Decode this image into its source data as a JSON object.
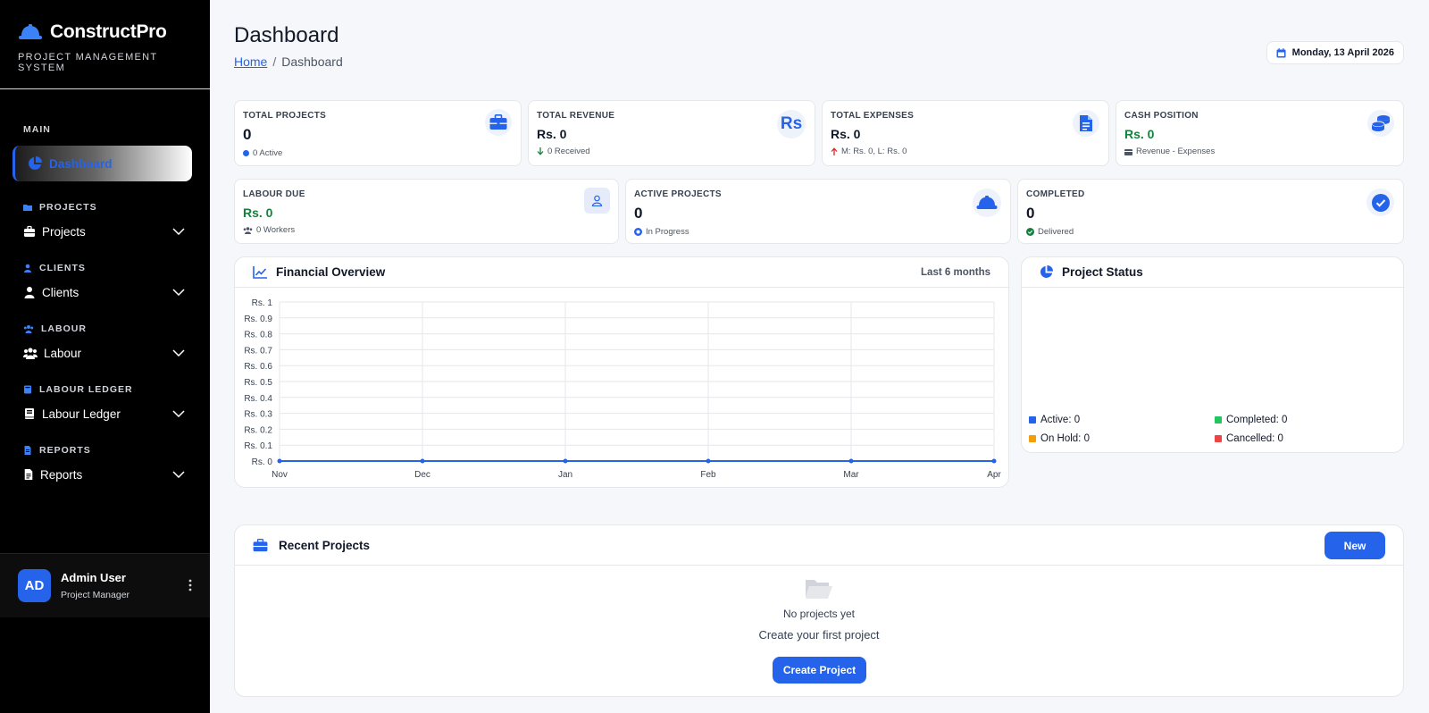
{
  "sidebar": {
    "brand_title": "ConstructPro",
    "brand_subtitle": "PROJECT MANAGEMENT SYSTEM",
    "brand_icon": "hard-hat-icon",
    "sections": [
      {
        "label": "MAIN"
      },
      {
        "label": "PROJECTS",
        "item": "Projects",
        "icon": "briefcase-icon"
      },
      {
        "label": "CLIENTS",
        "item": "Clients",
        "icon": "user-icon"
      },
      {
        "label": "LABOUR",
        "item": "Labour",
        "icon": "users-icon"
      },
      {
        "label": "LABOUR LEDGER",
        "item": "Labour Ledger",
        "icon": "book-icon"
      },
      {
        "label": "REPORTS",
        "item": "Reports",
        "icon": "file-icon"
      }
    ],
    "active_item": "Dashboard",
    "user": {
      "initials": "AD",
      "name": "Admin User",
      "role": "Project Manager"
    }
  },
  "header": {
    "title": "Dashboard",
    "breadcrumb": {
      "home": "Home",
      "current": "Dashboard"
    },
    "date": "Monday, 13 April 2026"
  },
  "stats": {
    "total_projects": {
      "label": "TOTAL PROJECTS",
      "value": "0",
      "sub": "0 Active"
    },
    "total_revenue": {
      "label": "TOTAL REVENUE",
      "value": "Rs. 0",
      "sub": "0 Received",
      "icon_text": "Rs"
    },
    "total_expenses": {
      "label": "TOTAL EXPENSES",
      "value": "Rs. 0",
      "sub": "M: Rs. 0, L: Rs. 0"
    },
    "cash_position": {
      "label": "CASH POSITION",
      "value": "Rs. 0",
      "sub": "Revenue - Expenses"
    },
    "labour_due": {
      "label": "LABOUR DUE",
      "value": "Rs. 0",
      "sub": "0 Workers"
    },
    "active_projects": {
      "label": "ACTIVE PROJECTS",
      "value": "0",
      "sub": "In Progress"
    },
    "completed": {
      "label": "COMPLETED",
      "value": "0",
      "sub": "Delivered"
    }
  },
  "financial": {
    "title": "Financial Overview",
    "range": "Last 6 months"
  },
  "chart_data": {
    "type": "line",
    "categories": [
      "Nov",
      "Dec",
      "Jan",
      "Feb",
      "Mar",
      "Apr"
    ],
    "y_ticks": [
      "Rs. 1",
      "Rs. 0.9",
      "Rs. 0.8",
      "Rs. 0.7",
      "Rs. 0.6",
      "Rs. 0.5",
      "Rs. 0.4",
      "Rs. 0.3",
      "Rs. 0.2",
      "Rs. 0.1",
      "Rs. 0"
    ],
    "series": [
      {
        "values": [
          0,
          0,
          0,
          0,
          0,
          0
        ],
        "color": "#2563eb"
      }
    ],
    "ylim": [
      0,
      1
    ],
    "grid": true
  },
  "project_status": {
    "title": "Project Status",
    "legend": [
      {
        "label": "Active: 0",
        "color": "#2563eb"
      },
      {
        "label": "Completed: 0",
        "color": "#22c55e"
      },
      {
        "label": "On Hold: 0",
        "color": "#f59e0b"
      },
      {
        "label": "Cancelled: 0",
        "color": "#ef4444"
      }
    ]
  },
  "recent_projects": {
    "title": "Recent Projects",
    "new_button": "New",
    "empty_title": "No projects yet",
    "empty_sub": "Create your first project",
    "create_button": "Create Project"
  },
  "colors": {
    "accent": "#2563eb",
    "success": "#15803d",
    "sidebar_bg": "#000000"
  }
}
